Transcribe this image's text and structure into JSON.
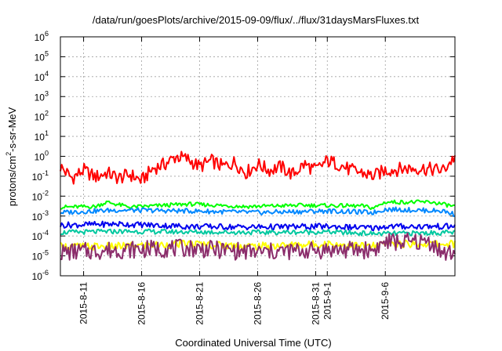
{
  "chart_data": {
    "type": "line",
    "title": "/data/run/goesPlots/archive/2015-09-09/flux/../flux/31daysMarsFluxes.txt",
    "xlabel": "Coordinated Universal Time (UTC)",
    "ylabel_main": "protons/cm",
    "ylabel_sup": "2",
    "ylabel_rest": "-s-sr-MeV",
    "yscale": "log",
    "ylim_exp": [
      -6,
      6
    ],
    "y_ticks": [
      {
        "base": "10",
        "exp": "-6"
      },
      {
        "base": "10",
        "exp": "-5"
      },
      {
        "base": "10",
        "exp": "-4"
      },
      {
        "base": "10",
        "exp": "-3"
      },
      {
        "base": "10",
        "exp": "-2"
      },
      {
        "base": "10",
        "exp": "-1"
      },
      {
        "base": "10",
        "exp": "0"
      },
      {
        "base": "10",
        "exp": "1"
      },
      {
        "base": "10",
        "exp": "2"
      },
      {
        "base": "10",
        "exp": "3"
      },
      {
        "base": "10",
        "exp": "4"
      },
      {
        "base": "10",
        "exp": "5"
      },
      {
        "base": "10",
        "exp": "6"
      }
    ],
    "x_range": [
      "2015-08-09",
      "2015-09-12"
    ],
    "x_ticks": [
      "2015-8-11",
      "2015-8-16",
      "2015-8-21",
      "2015-8-26",
      "2015-8-31",
      "2015-9-1",
      "2015-9-6"
    ],
    "x_tick_dates": [
      "2015-08-11",
      "2015-08-16",
      "2015-08-21",
      "2015-08-26",
      "2015-08-31",
      "2015-09-01",
      "2015-09-06"
    ],
    "grid": true,
    "series": [
      {
        "color": "#ff0000",
        "width": 2,
        "x": [
          "2015-08-09",
          "2015-08-10",
          "2015-08-11",
          "2015-08-12",
          "2015-08-13",
          "2015-08-14",
          "2015-08-15",
          "2015-08-16",
          "2015-08-17",
          "2015-08-18",
          "2015-08-19",
          "2015-08-20",
          "2015-08-21",
          "2015-08-22",
          "2015-08-23",
          "2015-08-24",
          "2015-08-25",
          "2015-08-26",
          "2015-08-27",
          "2015-08-28",
          "2015-08-29",
          "2015-08-30",
          "2015-08-31",
          "2015-09-01",
          "2015-09-02",
          "2015-09-03",
          "2015-09-04",
          "2015-09-05",
          "2015-09-06",
          "2015-09-07",
          "2015-09-08",
          "2015-09-09",
          "2015-09-10",
          "2015-09-11",
          "2015-09-12"
        ],
        "values": [
          0.3,
          0.08,
          0.2,
          0.09,
          0.15,
          0.08,
          0.12,
          0.06,
          0.25,
          0.4,
          1.0,
          0.7,
          0.3,
          0.6,
          0.3,
          0.5,
          0.15,
          0.4,
          0.2,
          0.3,
          0.12,
          0.4,
          0.2,
          0.6,
          0.4,
          0.2,
          0.15,
          0.1,
          0.2,
          0.22,
          0.25,
          0.25,
          0.22,
          0.2,
          1.0
        ],
        "noise": 0.35
      },
      {
        "color": "#00ff00",
        "width": 2,
        "x": [
          "2015-08-09",
          "2015-08-12",
          "2015-08-13",
          "2015-08-15",
          "2015-08-20",
          "2015-08-25",
          "2015-08-30",
          "2015-09-04",
          "2015-09-05",
          "2015-09-06",
          "2015-09-10",
          "2015-09-12"
        ],
        "values": [
          0.0028,
          0.003,
          0.005,
          0.0028,
          0.004,
          0.003,
          0.0035,
          0.0032,
          0.0025,
          0.005,
          0.005,
          0.003
        ],
        "noise": 0.1
      },
      {
        "color": "#0088ff",
        "width": 2,
        "x": [
          "2015-08-09",
          "2015-08-12",
          "2015-08-14",
          "2015-08-20",
          "2015-08-26",
          "2015-09-01",
          "2015-09-05",
          "2015-09-06",
          "2015-09-11",
          "2015-09-12"
        ],
        "values": [
          0.0015,
          0.0018,
          0.002,
          0.0018,
          0.0015,
          0.0018,
          0.0015,
          0.0022,
          0.0018,
          0.0012
        ],
        "noise": 0.12
      },
      {
        "color": "#0000ee",
        "width": 2,
        "x": [
          "2015-08-09",
          "2015-08-14",
          "2015-08-20",
          "2015-08-26",
          "2015-09-01",
          "2015-09-05",
          "2015-09-06",
          "2015-09-12"
        ],
        "values": [
          0.00035,
          0.0004,
          0.0003,
          0.00028,
          0.0003,
          0.00025,
          0.0003,
          0.0003
        ],
        "noise": 0.15
      },
      {
        "color": "#00c8a0",
        "width": 2,
        "x": [
          "2015-08-09",
          "2015-08-14",
          "2015-08-20",
          "2015-08-26",
          "2015-09-01",
          "2015-09-05",
          "2015-09-06",
          "2015-09-12"
        ],
        "values": [
          0.00015,
          0.00017,
          0.00016,
          0.00015,
          0.00016,
          0.00013,
          0.00013,
          0.00015
        ],
        "noise": 0.12
      },
      {
        "color": "#ffff00",
        "width": 2,
        "x": [
          "2015-08-09",
          "2015-08-14",
          "2015-08-20",
          "2015-08-26",
          "2015-09-01",
          "2015-09-05",
          "2015-09-06",
          "2015-09-12"
        ],
        "values": [
          3e-05,
          3e-05,
          4e-05,
          3e-05,
          4e-05,
          3e-05,
          4e-05,
          4e-05
        ],
        "noise": 0.2
      },
      {
        "color": "#8b2d6b",
        "width": 2,
        "x": [
          "2015-08-09",
          "2015-08-14",
          "2015-08-20",
          "2015-08-26",
          "2015-09-01",
          "2015-09-05",
          "2015-09-06",
          "2015-09-10",
          "2015-09-11",
          "2015-09-12"
        ],
        "values": [
          1.5e-05,
          2e-05,
          2.5e-05,
          1.5e-05,
          2e-05,
          2e-05,
          5e-05,
          5e-05,
          1.2e-05,
          1.5e-05
        ],
        "noise": 0.45
      }
    ]
  }
}
